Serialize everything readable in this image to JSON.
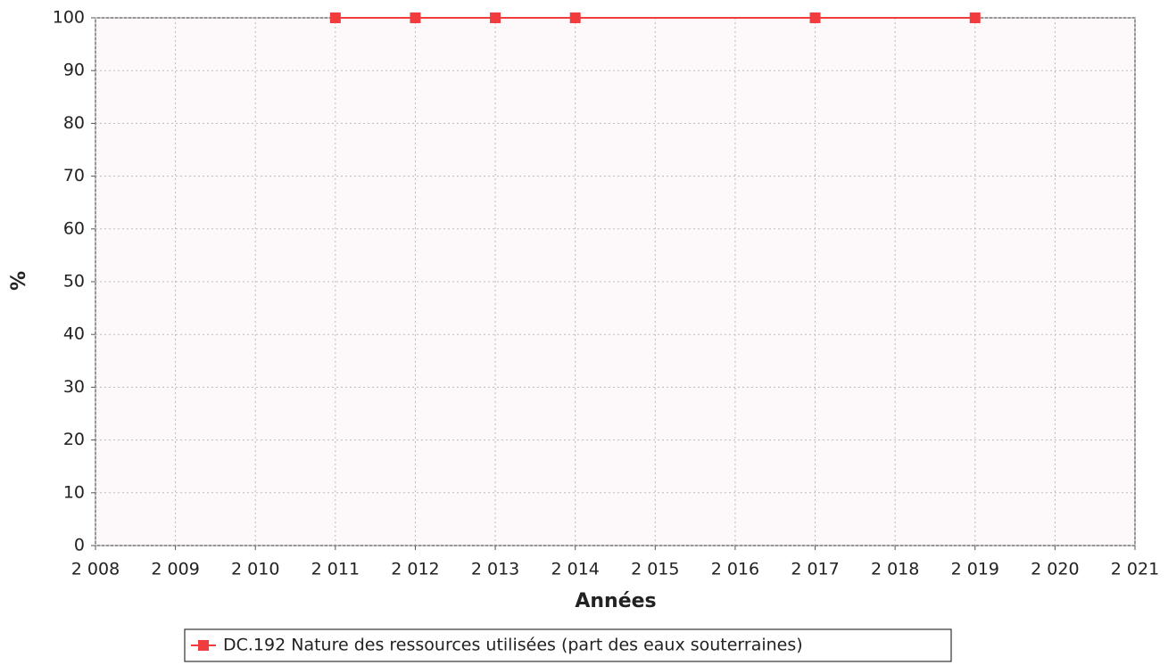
{
  "chart_data": {
    "type": "line",
    "xlabel": "Années",
    "ylabel": "%",
    "x": [
      2011,
      2012,
      2013,
      2014,
      2017,
      2019
    ],
    "series": [
      {
        "name": "DC.192 Nature des ressources utilisées (part des eaux souterraines)",
        "color": "#f03c3c",
        "values": [
          100,
          100,
          100,
          100,
          100,
          100
        ]
      }
    ],
    "xlim": [
      2008,
      2021
    ],
    "xticks": [
      {
        "value": 2008,
        "label": "2 008"
      },
      {
        "value": 2009,
        "label": "2 009"
      },
      {
        "value": 2010,
        "label": "2 010"
      },
      {
        "value": 2011,
        "label": "2 011"
      },
      {
        "value": 2012,
        "label": "2 012"
      },
      {
        "value": 2013,
        "label": "2 013"
      },
      {
        "value": 2014,
        "label": "2 014"
      },
      {
        "value": 2015,
        "label": "2 015"
      },
      {
        "value": 2016,
        "label": "2 016"
      },
      {
        "value": 2017,
        "label": "2 017"
      },
      {
        "value": 2018,
        "label": "2 018"
      },
      {
        "value": 2019,
        "label": "2 019"
      },
      {
        "value": 2020,
        "label": "2 020"
      },
      {
        "value": 2021,
        "label": "2 021"
      }
    ],
    "ylim": [
      0,
      100
    ],
    "yticks": [
      0,
      10,
      20,
      30,
      40,
      50,
      60,
      70,
      80,
      90,
      100
    ],
    "grid": true
  }
}
